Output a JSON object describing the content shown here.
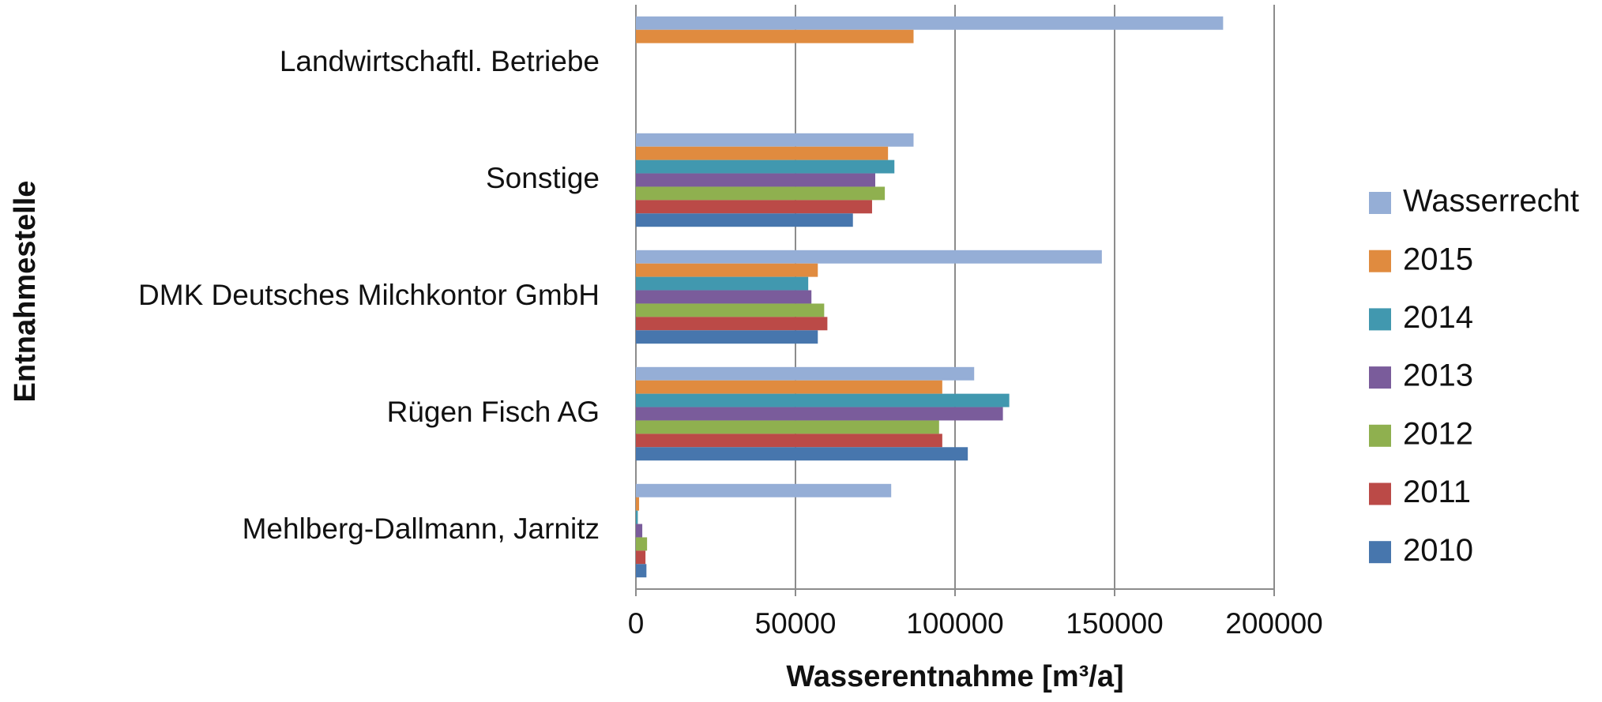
{
  "chart_data": {
    "type": "hbar",
    "x_label": "Wasserentnahme [m³/a]",
    "y_label": "Entnahmestelle",
    "categories": [
      "Mehlberg-Dallmann, Jarnitz",
      "Rügen Fisch AG",
      "DMK Deutsches Milchkontor GmbH",
      "Sonstige",
      "Landwirtschaftl. Betriebe"
    ],
    "series": [
      {
        "name": "Wasserrecht",
        "color": "#95aed6",
        "values": [
          80000,
          106000,
          146000,
          87000,
          184000
        ]
      },
      {
        "name": "2015",
        "color": "#e08b3f",
        "values": [
          1000,
          96000,
          57000,
          79000,
          87000
        ]
      },
      {
        "name": "2014",
        "color": "#4198af",
        "values": [
          600,
          117000,
          54000,
          81000,
          null
        ]
      },
      {
        "name": "2013",
        "color": "#7a5c9b",
        "values": [
          2000,
          115000,
          55000,
          75000,
          null
        ]
      },
      {
        "name": "2012",
        "color": "#8fb04f",
        "values": [
          3500,
          95000,
          59000,
          78000,
          null
        ]
      },
      {
        "name": "2011",
        "color": "#bb4a47",
        "values": [
          3000,
          96000,
          60000,
          74000,
          null
        ]
      },
      {
        "name": "2010",
        "color": "#4776ad",
        "values": [
          3300,
          104000,
          57000,
          68000,
          null
        ]
      }
    ],
    "xlim": [
      0,
      200000
    ],
    "xticks": [
      0,
      50000,
      100000,
      150000,
      200000
    ],
    "grid": true,
    "legend": "right"
  }
}
